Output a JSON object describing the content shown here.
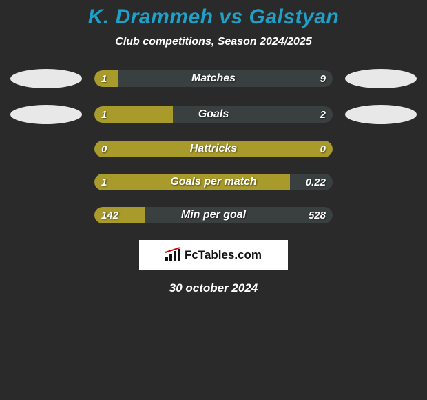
{
  "header": {
    "player_a": "K. Drammeh",
    "joiner": "vs",
    "player_b": "Galstyan",
    "title_color": "#1fa0c9"
  },
  "subtitle": "Club competitions, Season 2024/2025",
  "colors": {
    "bar_fill": "#a89a2b",
    "bar_bg": "#3a3f3f",
    "page_bg": "#2a2a2a",
    "text": "#ffffff",
    "ellipse": "#e8e8e8"
  },
  "rows": [
    {
      "label": "Matches",
      "left_val": "1",
      "right_val": "9",
      "fill_pct": 10,
      "show_ellipses": true
    },
    {
      "label": "Goals",
      "left_val": "1",
      "right_val": "2",
      "fill_pct": 33,
      "show_ellipses": true
    },
    {
      "label": "Hattricks",
      "left_val": "0",
      "right_val": "0",
      "fill_pct": 100,
      "show_ellipses": false
    },
    {
      "label": "Goals per match",
      "left_val": "1",
      "right_val": "0.22",
      "fill_pct": 82,
      "show_ellipses": false
    },
    {
      "label": "Min per goal",
      "left_val": "142",
      "right_val": "528",
      "fill_pct": 21,
      "show_ellipses": false
    }
  ],
  "attribution": "FcTables.com",
  "date": "30 october 2024"
}
